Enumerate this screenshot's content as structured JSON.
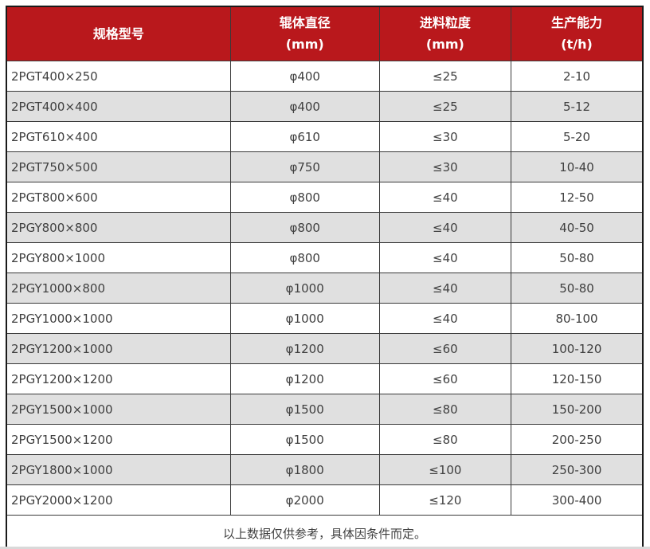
{
  "colors": {
    "header_bg": "#b9181c",
    "header_text": "#ffffff",
    "row_bg": "#ffffff",
    "row_alt_bg": "#e0e0e0",
    "grid_line": "#3a3a3a",
    "outer_border": "#1a1a1a",
    "cell_text": "#404040",
    "page_bg": "#ffffff"
  },
  "table": {
    "columns": [
      {
        "label": "规格型号",
        "unit": ""
      },
      {
        "label": "辊体直径",
        "unit": "(mm)"
      },
      {
        "label": "进料粒度",
        "unit": "(mm)"
      },
      {
        "label": "生产能力",
        "unit": "(t/h)"
      }
    ],
    "rows": [
      [
        "2PGT400×250",
        "φ400",
        "≤25",
        "2-10"
      ],
      [
        "2PGT400×400",
        "φ400",
        "≤25",
        "5-12"
      ],
      [
        "2PGT610×400",
        "φ610",
        "≤30",
        "5-20"
      ],
      [
        "2PGT750×500",
        "φ750",
        "≤30",
        "10-40"
      ],
      [
        "2PGT800×600",
        "φ800",
        "≤40",
        "12-50"
      ],
      [
        "2PGY800×800",
        "φ800",
        "≤40",
        "40-50"
      ],
      [
        "2PGY800×1000",
        "φ800",
        "≤40",
        "50-80"
      ],
      [
        "2PGY1000×800",
        "φ1000",
        "≤40",
        "50-80"
      ],
      [
        "2PGY1000×1000",
        "φ1000",
        "≤40",
        "80-100"
      ],
      [
        "2PGY1200×1000",
        "φ1200",
        "≤60",
        "100-120"
      ],
      [
        "2PGY1200×1200",
        "φ1200",
        "≤60",
        "120-150"
      ],
      [
        "2PGY1500×1000",
        "φ1500",
        "≤80",
        "150-200"
      ],
      [
        "2PGY1500×1200",
        "φ1500",
        "≤80",
        "200-250"
      ],
      [
        "2PGY1800×1000",
        "φ1800",
        "≤100",
        "250-300"
      ],
      [
        "2PGY2000×1200",
        "φ2000",
        "≤120",
        "300-400"
      ]
    ],
    "footnote": "以上数据仅供参考，具体因条件而定。"
  }
}
